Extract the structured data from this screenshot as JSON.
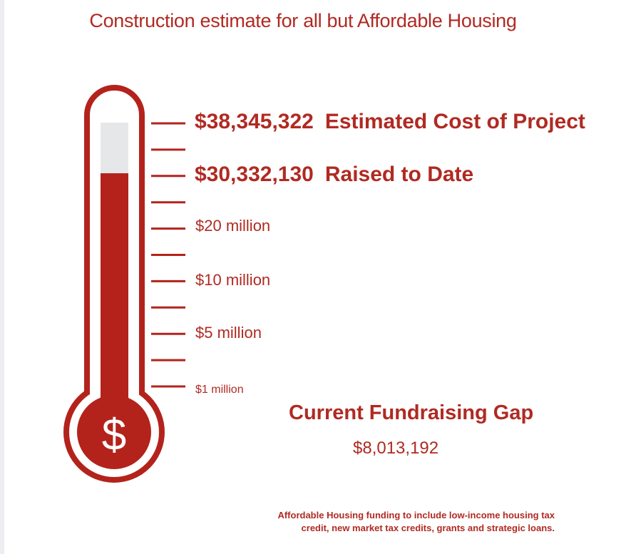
{
  "chart_data": {
    "type": "thermometer",
    "title": "Construction estimate for all but Affordable Housing",
    "goal": {
      "value": 38345322,
      "amount_label": "$38,345,322",
      "label": "Estimated Cost of Project"
    },
    "raised": {
      "value": 30332130,
      "amount_label": "$30,332,130",
      "label": "Raised to Date"
    },
    "tick_labels": [
      "$20 million",
      "$10 million",
      "$5 million",
      "$1 million"
    ],
    "tick_count": 11,
    "gap": {
      "title": "Current Fundraising Gap",
      "value": 8013192,
      "amount_label": "$8,013,192"
    },
    "bulb_symbol": "$",
    "footnote_lines": [
      "Affordable Housing funding to include low-income housing tax",
      "credit, new market tax credits, grants and strategic loans."
    ],
    "colors": {
      "accent": "#b3231c",
      "empty_tube": "#e6e7e9",
      "background": "#ffffff"
    }
  }
}
